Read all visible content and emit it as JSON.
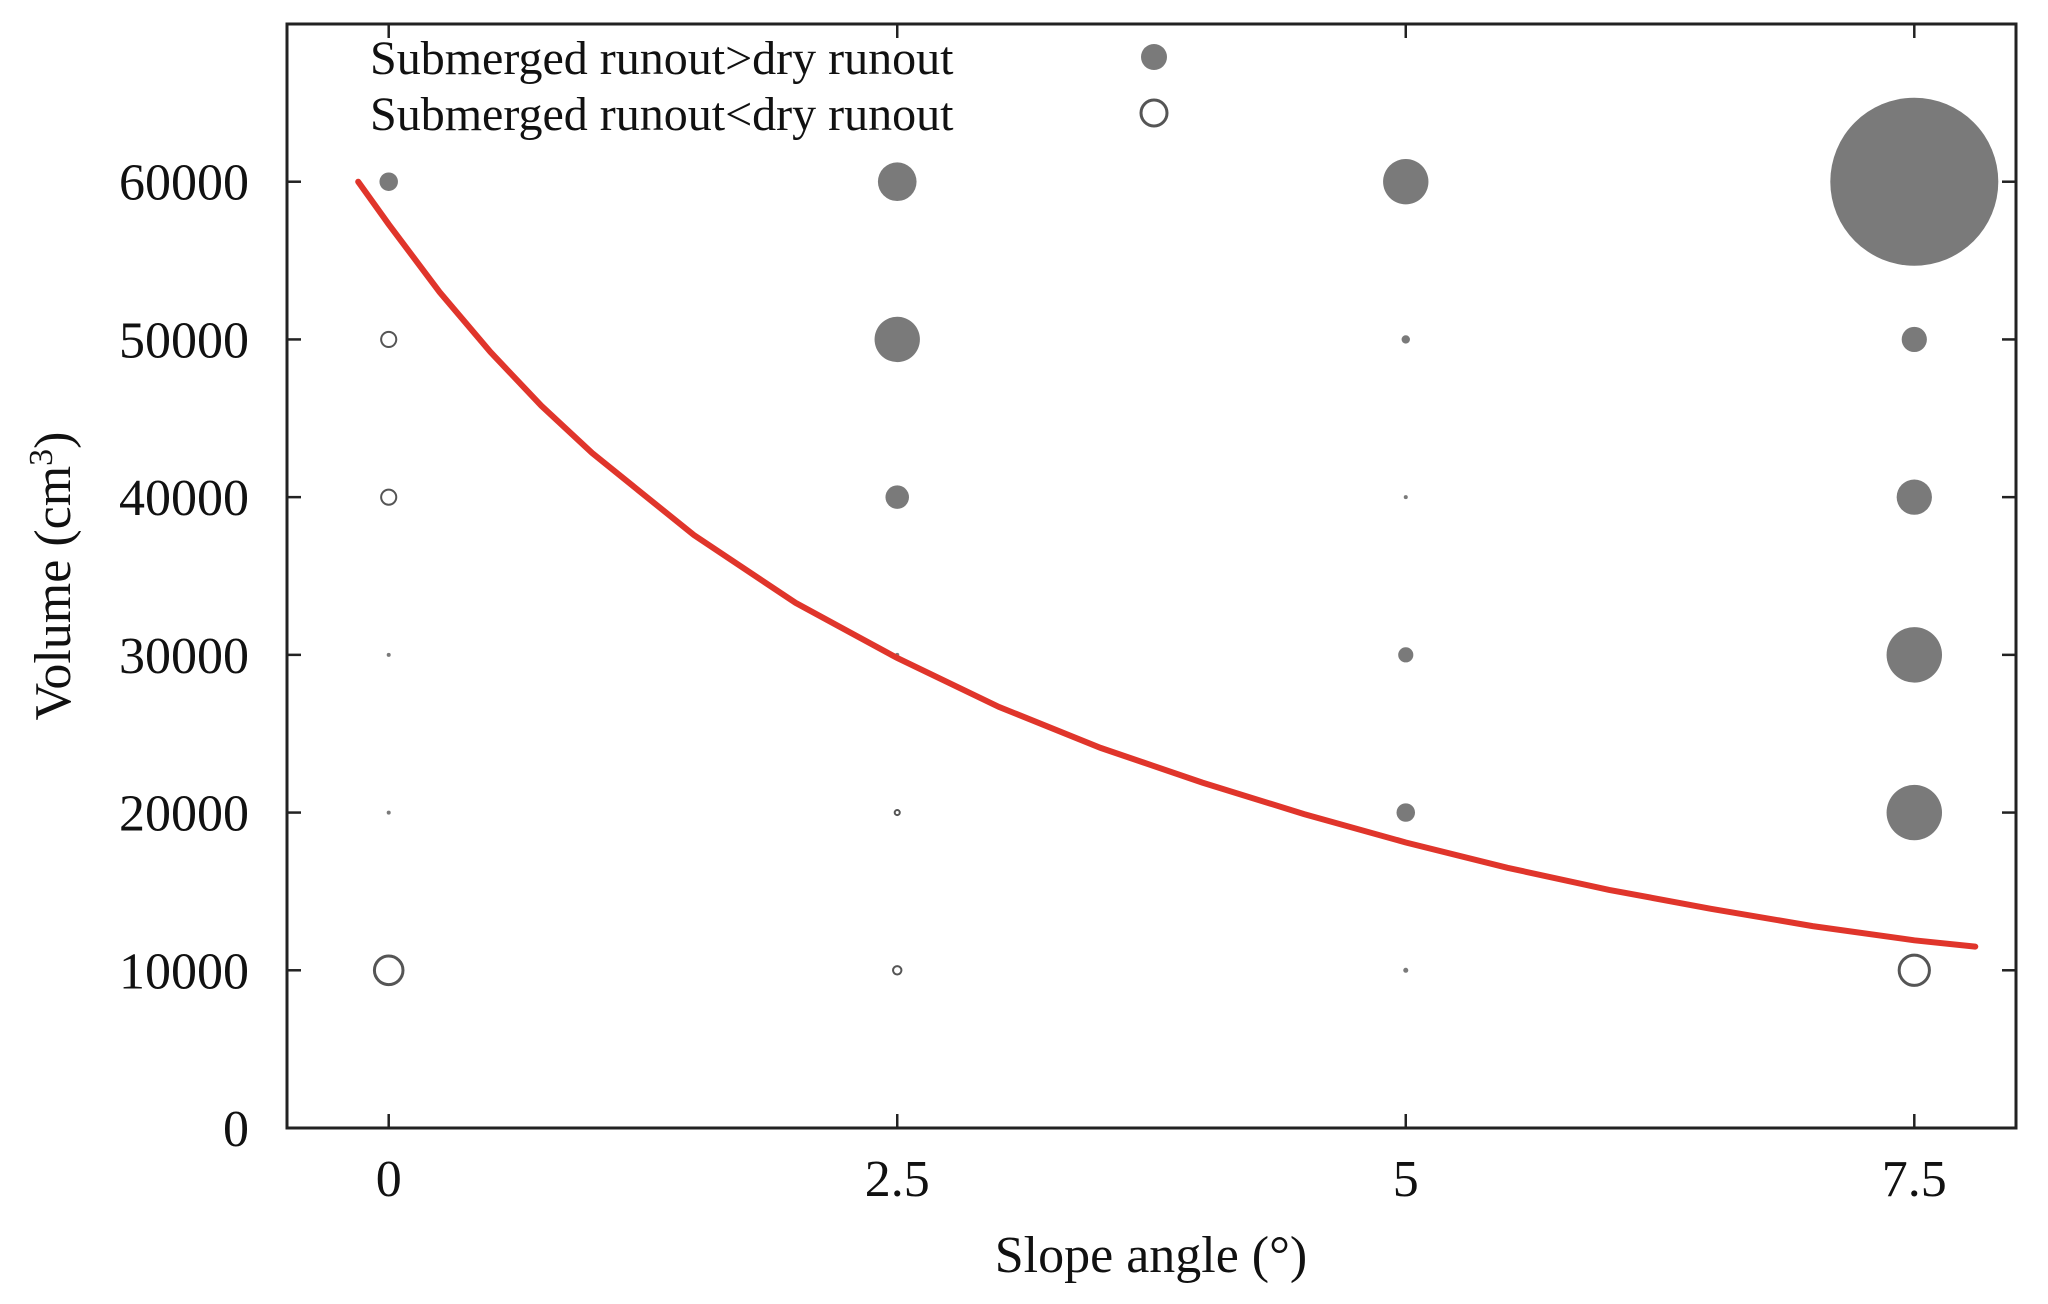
{
  "chart_data": {
    "type": "scatter",
    "xlabel": "Slope angle (°)",
    "ylabel": "Volume (cm",
    "ylabel_superscript": "3",
    "ylabel_suffix": ")",
    "xlim": [
      -0.5,
      8
    ],
    "ylim": [
      0,
      70000
    ],
    "x_ticks": [
      0,
      2.5,
      5,
      7.5
    ],
    "x_tick_labels": [
      "0",
      "2.5",
      "5",
      "7.5"
    ],
    "y_ticks": [
      0,
      10000,
      20000,
      30000,
      40000,
      50000,
      60000
    ],
    "y_tick_labels": [
      "0",
      "10000",
      "20000",
      "30000",
      "40000",
      "50000",
      "60000"
    ],
    "grid": false,
    "legend_position": "top-left",
    "legend": [
      {
        "label": "Submerged runout>dry runout",
        "marker": "filled"
      },
      {
        "label": "Submerged runout<dry runout",
        "marker": "open"
      }
    ],
    "colors": {
      "filled_marker": "#7a7a7a",
      "open_marker_stroke": "#555555",
      "curve": "#e0352b"
    },
    "series": [
      {
        "marker": "filled",
        "points": [
          {
            "x": 0,
            "y": 60000,
            "size": 0.11
          },
          {
            "x": 0,
            "y": 30000,
            "size": 0.01
          },
          {
            "x": 0,
            "y": 20000,
            "size": 0.02
          },
          {
            "x": 2.5,
            "y": 60000,
            "size": 0.23
          },
          {
            "x": 2.5,
            "y": 50000,
            "size": 0.27
          },
          {
            "x": 2.5,
            "y": 40000,
            "size": 0.14
          },
          {
            "x": 2.5,
            "y": 30000,
            "size": 0.02
          },
          {
            "x": 5,
            "y": 60000,
            "size": 0.27
          },
          {
            "x": 5,
            "y": 50000,
            "size": 0.05
          },
          {
            "x": 5,
            "y": 40000,
            "size": 0.015
          },
          {
            "x": 5,
            "y": 30000,
            "size": 0.09
          },
          {
            "x": 5,
            "y": 20000,
            "size": 0.11
          },
          {
            "x": 5,
            "y": 10000,
            "size": 0.03
          },
          {
            "x": 7.5,
            "y": 60000,
            "size": 1.0
          },
          {
            "x": 7.5,
            "y": 50000,
            "size": 0.15
          },
          {
            "x": 7.5,
            "y": 40000,
            "size": 0.21
          },
          {
            "x": 7.5,
            "y": 30000,
            "size": 0.33
          },
          {
            "x": 7.5,
            "y": 20000,
            "size": 0.33
          }
        ]
      },
      {
        "marker": "open",
        "points": [
          {
            "x": 0,
            "y": 50000,
            "size": 0.09
          },
          {
            "x": 0,
            "y": 40000,
            "size": 0.09
          },
          {
            "x": 0,
            "y": 10000,
            "size": 0.17
          },
          {
            "x": 2.5,
            "y": 20000,
            "size": 0.03
          },
          {
            "x": 2.5,
            "y": 10000,
            "size": 0.05
          },
          {
            "x": 7.5,
            "y": 10000,
            "size": 0.18
          }
        ]
      }
    ],
    "curve": {
      "points": [
        [
          -0.15,
          60000
        ],
        [
          0,
          57300
        ],
        [
          0.25,
          53000
        ],
        [
          0.5,
          49200
        ],
        [
          0.75,
          45800
        ],
        [
          1,
          42800
        ],
        [
          1.5,
          37600
        ],
        [
          2,
          33300
        ],
        [
          2.5,
          29800
        ],
        [
          3,
          26700
        ],
        [
          3.5,
          24100
        ],
        [
          4,
          21900
        ],
        [
          4.5,
          19900
        ],
        [
          5,
          18100
        ],
        [
          5.5,
          16500
        ],
        [
          6,
          15100
        ],
        [
          6.5,
          13900
        ],
        [
          7,
          12800
        ],
        [
          7.5,
          11900
        ],
        [
          7.8,
          11500
        ]
      ]
    }
  }
}
